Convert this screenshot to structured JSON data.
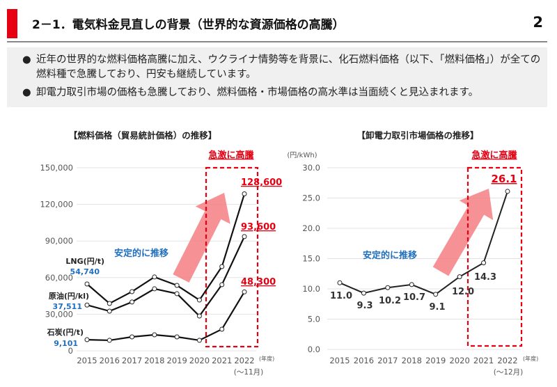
{
  "header": {
    "title": "2－1．電気料金見直しの背景（世界的な資源価格の高騰）",
    "page_number": "2",
    "accent_color": "#e60012"
  },
  "summary": {
    "bullets": [
      "近年の世界的な燃料価格高騰に加え、ウクライナ情勢等を背景に、化石燃料価格（以下、「燃料価格」）が全ての燃料種で急騰しており、円安も継続しています。",
      "卸電力取引市場の価格も急騰しており、燃料価格・市場価格の高水準は当面続くと見込まれます。"
    ],
    "bullet_glyph": "●"
  },
  "chart_data": [
    {
      "type": "line",
      "title": "【燃料価格（貿易統計価格）の推移】",
      "categories": [
        "2015",
        "2016",
        "2017",
        "2018",
        "2019",
        "2020",
        "2021",
        "2022"
      ],
      "x_unit": "(年度)",
      "x_note": "(～11月)",
      "ylim": [
        0,
        150000
      ],
      "yticks": [
        "0",
        "30,000",
        "60,000",
        "90,000",
        "120,000",
        "150,000"
      ],
      "grid": true,
      "series": [
        {
          "name": "LNG(円/t)",
          "start_label": "54,740",
          "end_label": "128,600",
          "values": [
            54740,
            38800,
            48500,
            60500,
            53600,
            41600,
            69000,
            128600
          ]
        },
        {
          "name": "原油(円/kl)",
          "start_label": "37,511",
          "end_label": "93,600",
          "values": [
            37511,
            32500,
            40000,
            50800,
            46800,
            28500,
            54200,
            93600
          ]
        },
        {
          "name": "石炭(円/t)",
          "start_label": "9,101",
          "end_label": "48,300",
          "values": [
            9101,
            8600,
            11400,
            13100,
            11400,
            8600,
            17700,
            48300
          ]
        }
      ],
      "annotations": {
        "stable": "安定的に推移",
        "surge": "急激に高騰"
      },
      "colors": {
        "line": "#111111",
        "start_label": "#1f6fbf",
        "highlight": "#e60012",
        "arrow": "#f47f84",
        "stable": "#1f6fbf"
      }
    },
    {
      "type": "line",
      "title": "【卸電力取引市場価格の推移】",
      "ylabel": "(円/kWh)",
      "categories": [
        "2015",
        "2016",
        "2017",
        "2018",
        "2019",
        "2020",
        "2021",
        "2022"
      ],
      "x_unit": "(年度)",
      "x_note": "(～12月)",
      "ylim": [
        0,
        30
      ],
      "yticks": [
        "0.0",
        "5.0",
        "10.0",
        "15.0",
        "20.0",
        "25.0",
        "30.0"
      ],
      "grid": true,
      "values": [
        11.0,
        9.3,
        10.2,
        10.7,
        9.1,
        12.0,
        14.3,
        26.1
      ],
      "labels": [
        "11.0",
        "9.3",
        "10.2",
        "10.7",
        "9.1",
        "12.0",
        "14.3",
        "26.1"
      ],
      "annotations": {
        "stable": "安定的に推移",
        "surge": "急激に高騰"
      },
      "colors": {
        "line": "#222222",
        "highlight": "#e60012",
        "arrow": "#f47f84",
        "stable": "#1f6fbf"
      }
    }
  ]
}
